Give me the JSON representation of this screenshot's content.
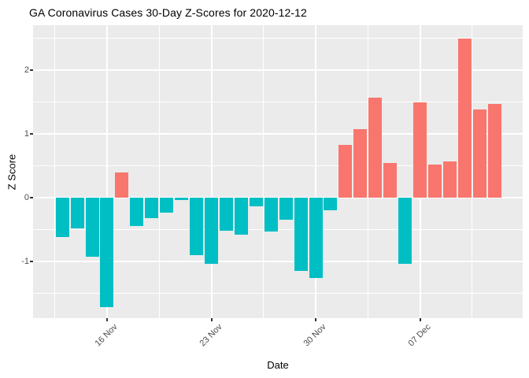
{
  "title": "GA Coronavirus Cases 30-Day Z-Scores for 2020-12-12",
  "chart_data": {
    "type": "bar",
    "title": "GA Coronavirus Cases 30-Day Z-Scores for 2020-12-12",
    "xlabel": "Date",
    "ylabel": "Z Score",
    "x": [
      "2020-11-13",
      "2020-11-14",
      "2020-11-15",
      "2020-11-16",
      "2020-11-17",
      "2020-11-18",
      "2020-11-19",
      "2020-11-20",
      "2020-11-21",
      "2020-11-22",
      "2020-11-23",
      "2020-11-24",
      "2020-11-25",
      "2020-11-26",
      "2020-11-27",
      "2020-11-28",
      "2020-11-29",
      "2020-11-30",
      "2020-12-01",
      "2020-12-02",
      "2020-12-03",
      "2020-12-04",
      "2020-12-05",
      "2020-12-06",
      "2020-12-07",
      "2020-12-08",
      "2020-12-09",
      "2020-12-10",
      "2020-12-11",
      "2020-12-12"
    ],
    "values": [
      -0.62,
      -0.48,
      -0.92,
      -1.71,
      0.39,
      -0.44,
      -0.32,
      -0.23,
      -0.04,
      -0.9,
      -1.04,
      -0.52,
      -0.58,
      -0.13,
      -0.53,
      -0.34,
      -1.15,
      -1.26,
      -0.2,
      0.83,
      1.08,
      1.57,
      0.54,
      -1.04,
      1.5,
      0.52,
      0.57,
      2.5,
      1.38,
      1.47
    ],
    "ylim": [
      -1.89,
      2.7
    ],
    "grid": true,
    "legend_position": "none",
    "y_major_ticks": [
      {
        "label": "-1",
        "value": -1
      },
      {
        "label": "0",
        "value": 0
      },
      {
        "label": "1",
        "value": 1
      },
      {
        "label": "2",
        "value": 2
      }
    ],
    "y_minor_values": [
      -1.5,
      -0.5,
      0.5,
      1.5,
      2.5
    ],
    "x_major_ticks": [
      {
        "label": "16 Nov",
        "day_index": 3
      },
      {
        "label": "23 Nov",
        "day_index": 10
      },
      {
        "label": "30 Nov",
        "day_index": 17
      },
      {
        "label": "07 Dec",
        "day_index": 24
      }
    ],
    "x_minor_day_indices": [
      -0.5,
      6.5,
      13.5,
      20.5,
      27.5
    ],
    "colors": {
      "positive_bar": "#F8766D",
      "negative_bar": "#00BFC4",
      "panel_background": "#EBEBEB",
      "gridline": "#FFFFFF",
      "tick_mark": "#333333",
      "tick_text": "#4D4D4D",
      "title_text": "#000000"
    }
  }
}
